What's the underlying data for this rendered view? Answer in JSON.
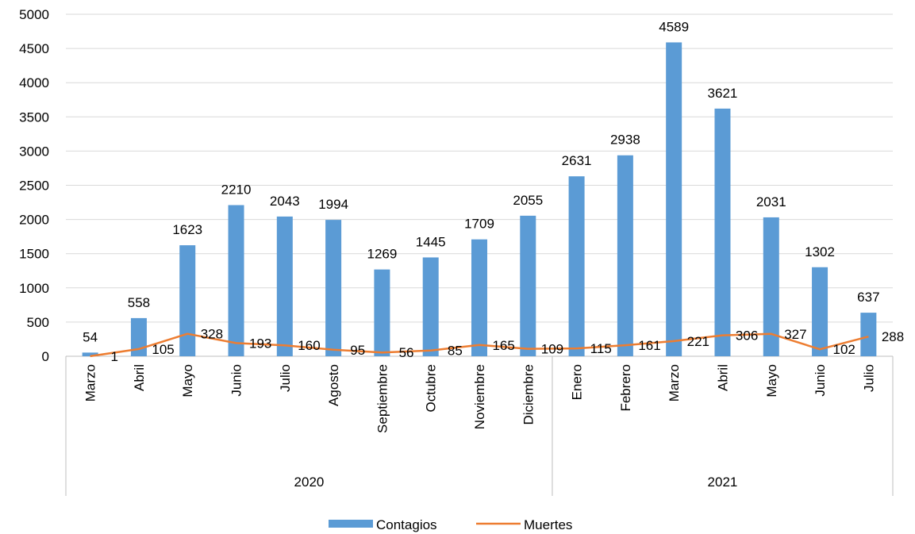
{
  "chart_data": {
    "type": "bar",
    "categories": [
      "Marzo",
      "Abril",
      "Mayo",
      "Junio",
      "Julio",
      "Agosto",
      "Septiembre",
      "Octubre",
      "Noviembre",
      "Diciembre",
      "Enero",
      "Febrero",
      "Marzo",
      "Abril",
      "Mayo",
      "Junio",
      "Julio"
    ],
    "groups": [
      {
        "label": "2020",
        "count": 10
      },
      {
        "label": "2021",
        "count": 7
      }
    ],
    "series": [
      {
        "name": "Contagios",
        "kind": "bar",
        "color": "#5B9BD5",
        "values": [
          54,
          558,
          1623,
          2210,
          2043,
          1994,
          1269,
          1445,
          1709,
          2055,
          2631,
          2938,
          4589,
          3621,
          2031,
          1302,
          637
        ]
      },
      {
        "name": "Muertes",
        "kind": "line",
        "color": "#ED7D31",
        "values": [
          1,
          105,
          328,
          193,
          160,
          95,
          56,
          85,
          165,
          109,
          115,
          161,
          221,
          306,
          327,
          102,
          288
        ]
      }
    ],
    "y_ticks": [
      0,
      500,
      1000,
      1500,
      2000,
      2500,
      3000,
      3500,
      4000,
      4500,
      5000
    ],
    "ylim": [
      0,
      5000
    ],
    "grid": true,
    "legend": "bottom"
  }
}
